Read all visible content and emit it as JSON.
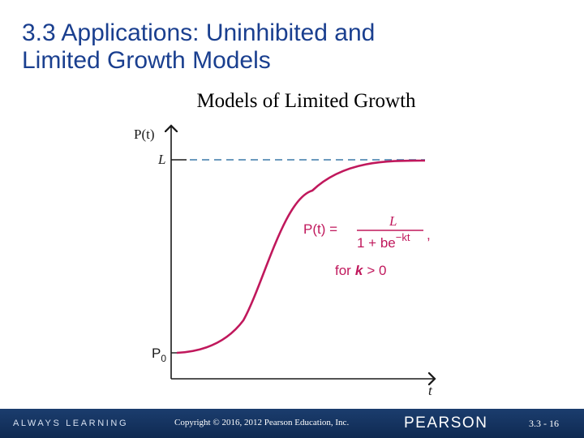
{
  "slide": {
    "title_line1": "3.3 Applications:  Uninhibited and",
    "title_line2": "Limited Growth Models",
    "subtitle": "Models of Limited Growth"
  },
  "graph": {
    "y_axis_label": "P(t)",
    "x_axis_label": "t",
    "asymptote_label": "L",
    "initial_label": "P",
    "initial_subscript": "0",
    "formula_lhs": "P(t) =",
    "formula_numerator": "L",
    "formula_denominator_a": "1 + be",
    "formula_exponent": "−kt",
    "formula_comma": ",",
    "condition_prefix": "for",
    "condition_var": "k",
    "condition_rest": "> 0",
    "colors": {
      "curve": "#c0185c",
      "asymptote": "#3b78a8",
      "axis": "#1a1a1a",
      "formula": "#c0185c",
      "title": "#1a3f8f"
    }
  },
  "footer": {
    "left_text": "ALWAYS LEARNING",
    "copyright": "Copyright © 2016, 2012  Pearson Education, Inc.",
    "brand": "PEARSON",
    "page": "3.3 - 16"
  }
}
